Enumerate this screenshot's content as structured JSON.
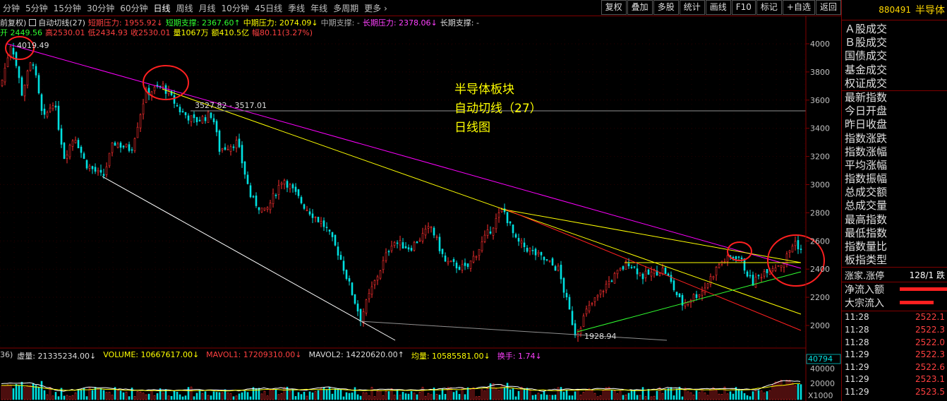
{
  "toolbar": {
    "periods": [
      "分钟",
      "5分钟",
      "15分钟",
      "30分钟",
      "60分钟",
      "日线",
      "周线",
      "月线",
      "10分钟",
      "45日线",
      "季线",
      "年线",
      "多周期",
      "更多 ›"
    ],
    "active_period": "日线",
    "tools": [
      "复权",
      "叠加",
      "多股",
      "统计",
      "画线",
      "F10",
      "标记",
      "+自选",
      "返回"
    ]
  },
  "indicator_line": {
    "mode": "前复权)",
    "indicator": "自动切线(27)",
    "short_pressure": "短期压力: 1955.92↓",
    "short_support": "短期支撑: 2367.60↑",
    "mid_pressure": "中期压力: 2074.09↓",
    "mid_support": "中期支撑: -",
    "long_pressure": "长期压力: 2378.06↓",
    "long_support": "长期支撑: -"
  },
  "ohlc_line": {
    "open": "开 2449.56",
    "high": "高2530.01",
    "low": "低2434.93",
    "close": "收2530.01",
    "volume": "量1067万",
    "amount": "额410.5亿",
    "change": "幅80.11(3.27%)"
  },
  "price_axis": [
    "4000",
    "3800",
    "3600",
    "3400",
    "3200",
    "3000",
    "2800",
    "2600",
    "2400",
    "2200",
    "2000"
  ],
  "annotations": {
    "high_label": "4019.49",
    "mid_label": "3527.82 - 3517.01",
    "low_label": "1928.94",
    "title_1": "半导体板块",
    "title_2": "自动切线（27）",
    "title_3": "日线图"
  },
  "volume_panel": {
    "header_prefix": "36)",
    "vol_virtual": "虚量: 21335234.00↓",
    "volume": "VOLUME: 10667617.00↓",
    "mavol1": "MAVOL1: 17209310.00↓",
    "mavol2": "MAVOL2: 14220620.00↑",
    "avg": "均量: 10585581.00↓",
    "turnover": "换手: 1.74↓",
    "axis_top": "40794",
    "axis_1": "40000",
    "axis_2": "20000",
    "axis_unit": "X1000"
  },
  "right_panel": {
    "code": "880491",
    "name": "半导体",
    "fields": [
      "Ａ股成交",
      "Ｂ股成交",
      "国债成交",
      "基金成交",
      "权证成交"
    ],
    "fields2": [
      "最新指数",
      "今日开盘",
      "昨日收盘",
      "指数涨跌",
      "指数涨幅",
      "平均涨幅",
      "指数振幅",
      "总成交额",
      "总成交量",
      "最高指数",
      "最低指数",
      "指数量比",
      "板指类型"
    ],
    "up_limit_label": "涨家.涨停",
    "up_limit_value": "128/1 跌",
    "net_inflow_label": "净流入额",
    "block_inflow_label": "大宗流入",
    "ticks": [
      {
        "time": "11:28",
        "price": "2522.1"
      },
      {
        "time": "11:28",
        "price": "2522.3"
      },
      {
        "time": "11:28",
        "price": "2522.0"
      },
      {
        "time": "11:29",
        "price": "2522.3"
      },
      {
        "time": "11:29",
        "price": "2522.6"
      },
      {
        "time": "11:29",
        "price": "2523.1"
      },
      {
        "time": "11:29",
        "price": "2523.5"
      }
    ]
  },
  "colors": {
    "up": "#ff3030",
    "down": "#00e0e0",
    "pressure_line": "#ff00ff",
    "trend_yellow": "#ffff00",
    "trend_white": "#ffffff",
    "trend_red": "#ff2020",
    "trend_green": "#30ff30"
  }
}
